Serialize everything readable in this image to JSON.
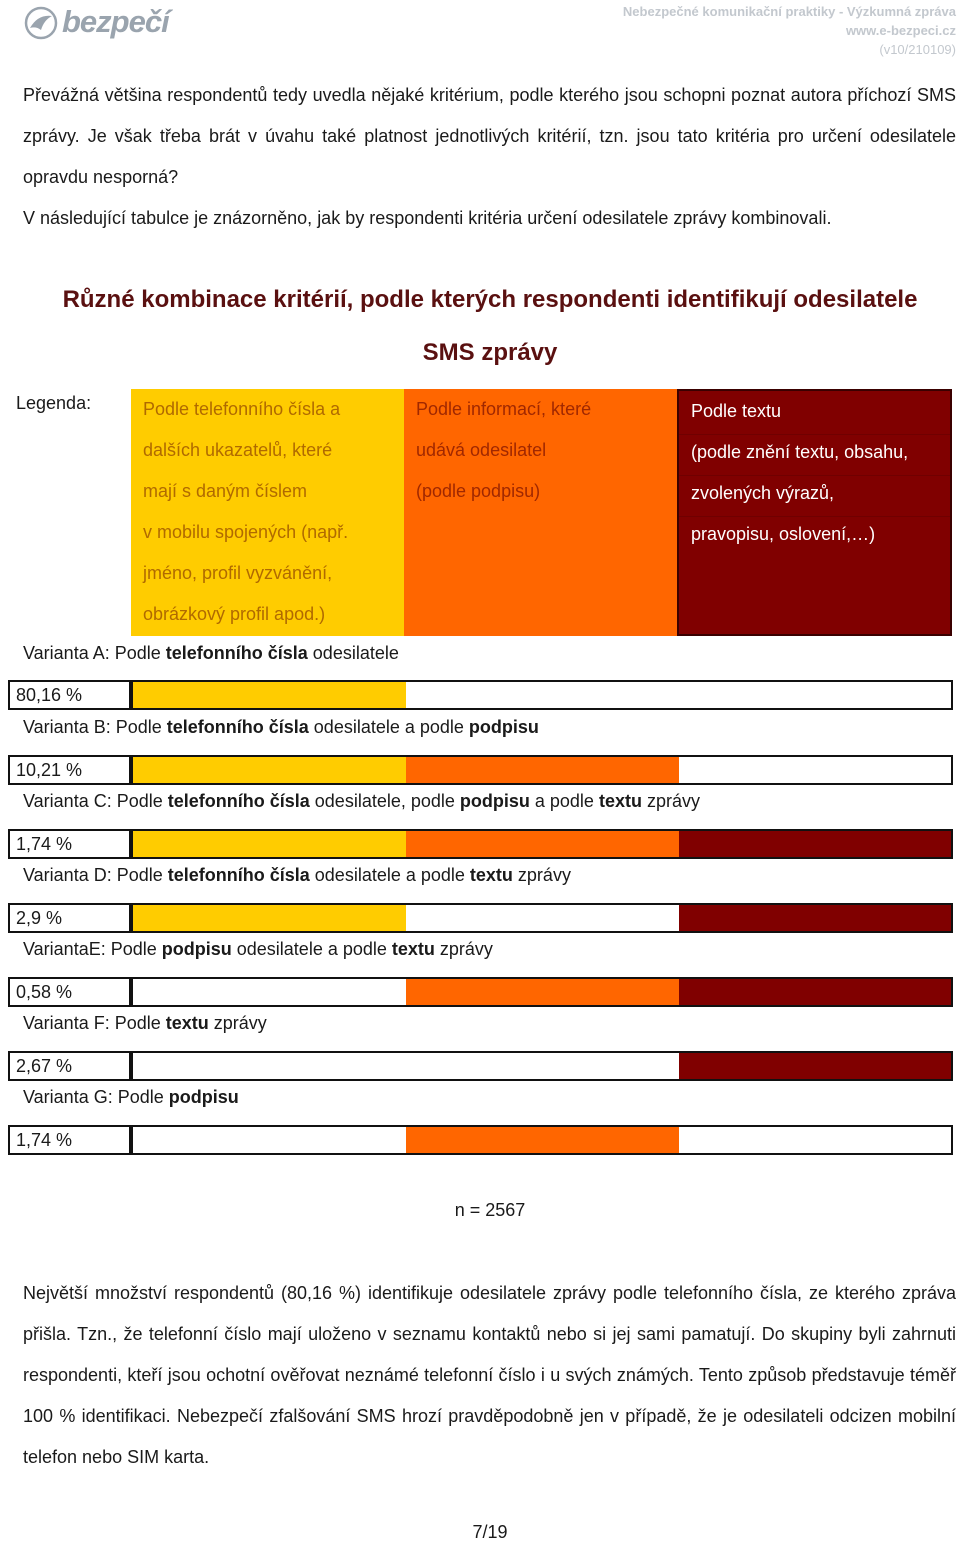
{
  "header": {
    "logo": "bezpečí",
    "doc_title": "Nebezpečné komunikační praktiky -  Výzkumná zpráva",
    "site": "www.e-bezpeci.cz",
    "version": "(v10/210109)"
  },
  "intro": {
    "p1": "Převážná většina respondentů tedy uvedla nějaké kritérium, podle kterého jsou schopni poznat autora příchozí SMS zprávy. Je však třeba brát v úvahu také platnost jednotlivých kritérií, tzn. jsou tato kritéria pro určení odesilatele opravdu nesporná?",
    "p2": "V následující tabulce je znázorněno, jak by respondenti kritéria určení odesilatele zprávy kombinovali."
  },
  "table": {
    "title_line1": "Různé kombinace kritérií, podle kterých respondenti identifikují odesilatele",
    "title_line2": "SMS zprávy",
    "legend_label": "Legenda:",
    "legend": [
      {
        "color": "#ffcc00",
        "lines": [
          "Podle telefonního čísla a",
          "dalších ukazatelů, které",
          "mají s daným číslem",
          "v mobilu spojených (např.",
          "jméno, profil vyzvánění,",
          "obrázkový profil apod.)"
        ]
      },
      {
        "color": "#ff6600",
        "lines": [
          "Podle informací, které",
          "udává odesilatel",
          "(podle podpisu)"
        ]
      },
      {
        "color": "#800000",
        "lines": [
          "Podle textu",
          "(podle znění textu, obsahu,",
          "zvolených výrazů,",
          "pravopisu, oslovení,…)"
        ]
      }
    ],
    "variants": [
      {
        "pre": "Varianta A: Podle ",
        "b1": "telefonního čísla",
        "mid": " odesilatele",
        "b2": "",
        "mid2": "",
        "b3": "",
        "post": "",
        "percent": "80,16 %",
        "segments": [
          "y",
          "w",
          "w"
        ]
      },
      {
        "pre": "Varianta B: Podle ",
        "b1": "telefonního čísla",
        "mid": " odesilatele a podle ",
        "b2": "podpisu",
        "mid2": "",
        "b3": "",
        "post": "",
        "percent": "10,21 %",
        "segments": [
          "y",
          "o",
          "w"
        ]
      },
      {
        "pre": "Varianta C: Podle ",
        "b1": "telefonního čísla",
        "mid": " odesilatele, podle ",
        "b2": "podpisu",
        "mid2": " a podle ",
        "b3": "textu",
        "post": " zprávy",
        "percent": "1,74 %",
        "segments": [
          "y",
          "o",
          "r"
        ]
      },
      {
        "pre": "Varianta D: Podle ",
        "b1": "telefonního čísla",
        "mid": " odesilatele a podle ",
        "b2": "textu",
        "mid2": " zprávy",
        "b3": "",
        "post": "",
        "percent": "2,9 %",
        "segments": [
          "y",
          "w",
          "r"
        ]
      },
      {
        "pre": "VariantaE: Podle ",
        "b1": "podpisu",
        "mid": " odesilatele a podle ",
        "b2": "textu",
        "mid2": " zprávy",
        "b3": "",
        "post": "",
        "percent": "0,58 %",
        "segments": [
          "w",
          "o",
          "r"
        ]
      },
      {
        "pre": "Varianta F: Podle ",
        "b1": "textu",
        "mid": " zprávy",
        "b2": "",
        "mid2": "",
        "b3": "",
        "post": "",
        "percent": "2,67 %",
        "segments": [
          "w",
          "w",
          "r"
        ]
      },
      {
        "pre": "Varianta G: Podle ",
        "b1": "podpisu",
        "mid": "",
        "b2": "",
        "mid2": "",
        "b3": "",
        "post": "",
        "percent": "1,74 %",
        "segments": [
          "w",
          "o",
          "w"
        ]
      }
    ],
    "n": "n = 2567"
  },
  "conclusion": "Největší množství respondentů (80,16 %) identifikuje odesilatele zprávy podle telefonního čísla, ze kterého zpráva přišla. Tzn., že telefonní číslo mají uloženo v seznamu kontaktů nebo si jej sami pamatují. Do skupiny byli zahrnuti respondenti, kteří jsou ochotní ověřovat neznámé telefonní číslo i u svých známých. Tento způsob představuje téměř 100 % identifikaci. Nebezpečí zfalšování SMS hrozí pravděpodobně jen v případě, že je odesilateli odcizen mobilní telefon nebo SIM karta.",
  "page_number": "7/19"
}
